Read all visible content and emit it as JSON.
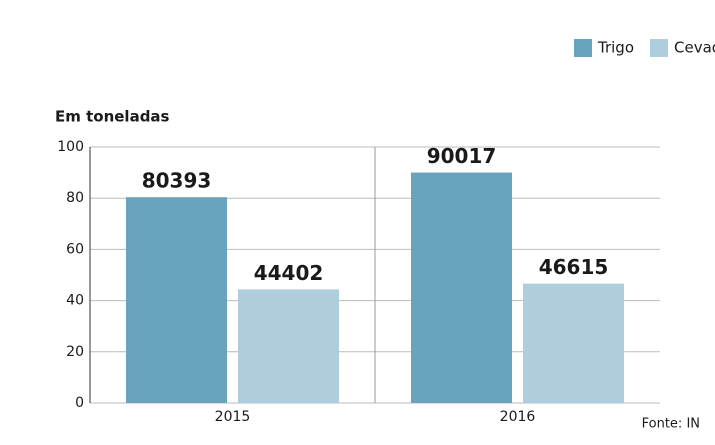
{
  "chart_data": {
    "type": "bar",
    "y_label": "Em toneladas",
    "source": "Fonte: IN",
    "categories": [
      "2015",
      "2016"
    ],
    "series": [
      {
        "name": "Trigo",
        "color": "#6aa3bd",
        "values": [
          80.393,
          90.017
        ],
        "value_labels": [
          "80393",
          "90017"
        ]
      },
      {
        "name": "Cevad",
        "color": "#aecddd",
        "values": [
          44.402,
          46.615
        ],
        "value_labels": [
          "44402",
          "46615"
        ]
      }
    ],
    "ylim": [
      0,
      100
    ],
    "yticks": [
      0,
      20,
      40,
      60,
      80,
      100
    ],
    "grid": true,
    "legend": "top-right"
  }
}
